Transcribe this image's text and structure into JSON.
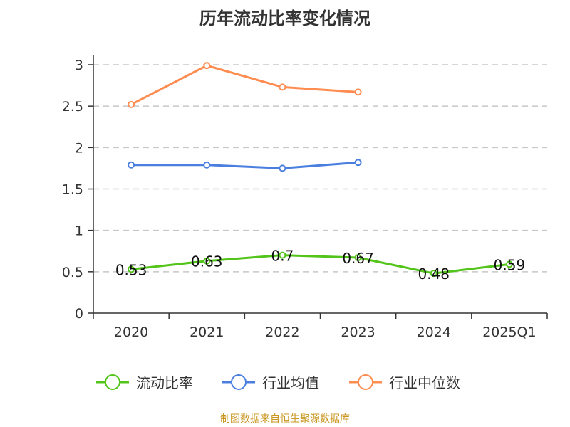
{
  "title": "历年流动比率变化情况",
  "source": "制图数据来自恒生聚源数据库",
  "colors": {
    "current_ratio": "#52c41a",
    "industry_avg": "#4a7fe0",
    "industry_median": "#ff8c50"
  },
  "chart_data": {
    "type": "line",
    "title": "历年流动比率变化情况",
    "categories": [
      "2020",
      "2021",
      "2022",
      "2023",
      "2024",
      "2025Q1"
    ],
    "yticks": [
      "0",
      "0.5",
      "1",
      "1.5",
      "2",
      "2.5",
      "3"
    ],
    "ylim": [
      0,
      3
    ],
    "grid": true,
    "legend_position": "bottom",
    "series": [
      {
        "name": "流动比率",
        "values": [
          0.53,
          0.63,
          0.7,
          0.67,
          0.48,
          0.59
        ],
        "labels": [
          "0.53",
          "0.63",
          "0.7",
          "0.67",
          "0.48",
          "0.59"
        ],
        "color": "#52c41a"
      },
      {
        "name": "行业均值",
        "values": [
          1.79,
          1.79,
          1.75,
          1.82,
          null,
          null
        ],
        "color": "#4a7fe0"
      },
      {
        "name": "行业中位数",
        "values": [
          2.52,
          2.99,
          2.73,
          2.67,
          null,
          null
        ],
        "color": "#ff8c50"
      }
    ]
  }
}
